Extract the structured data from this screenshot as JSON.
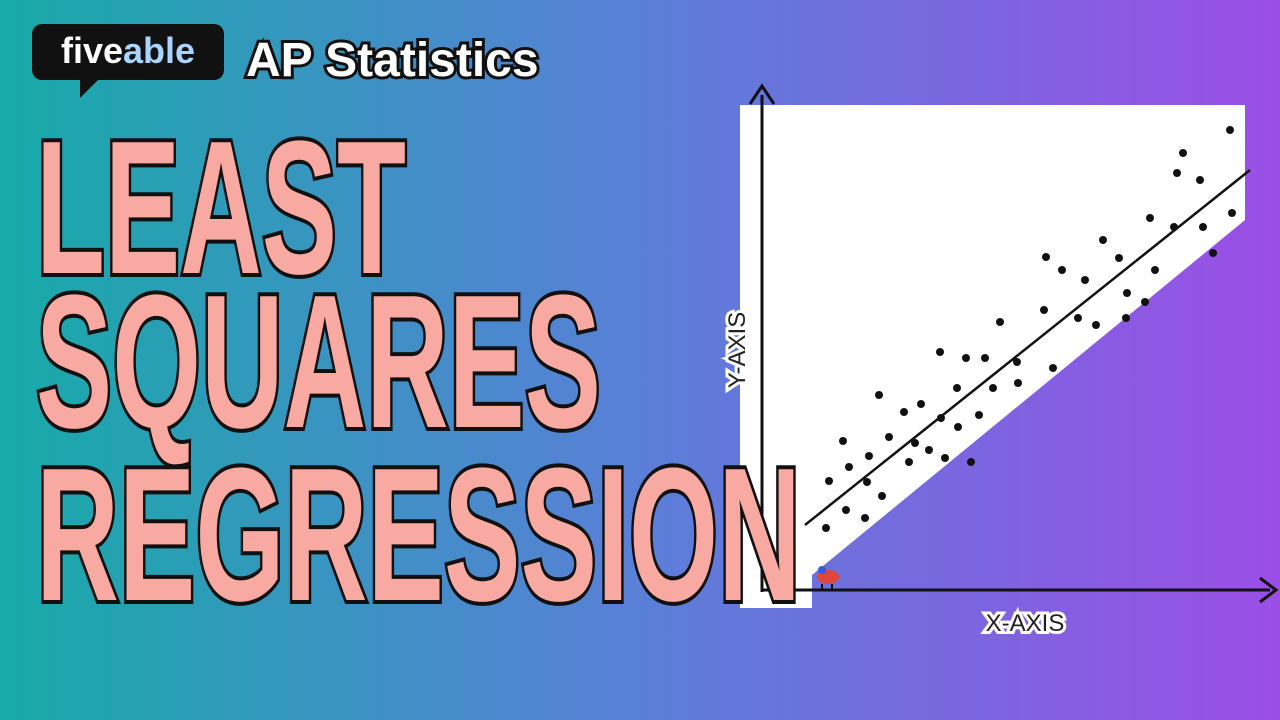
{
  "header": {
    "brand": "fiveable",
    "course": "AP Statistics"
  },
  "title": {
    "lines": [
      "LEAST",
      "SQUARES",
      "REGRESSION"
    ]
  },
  "plot": {
    "x_label": "X-AXIS",
    "y_label": "Y-AXIS"
  }
}
